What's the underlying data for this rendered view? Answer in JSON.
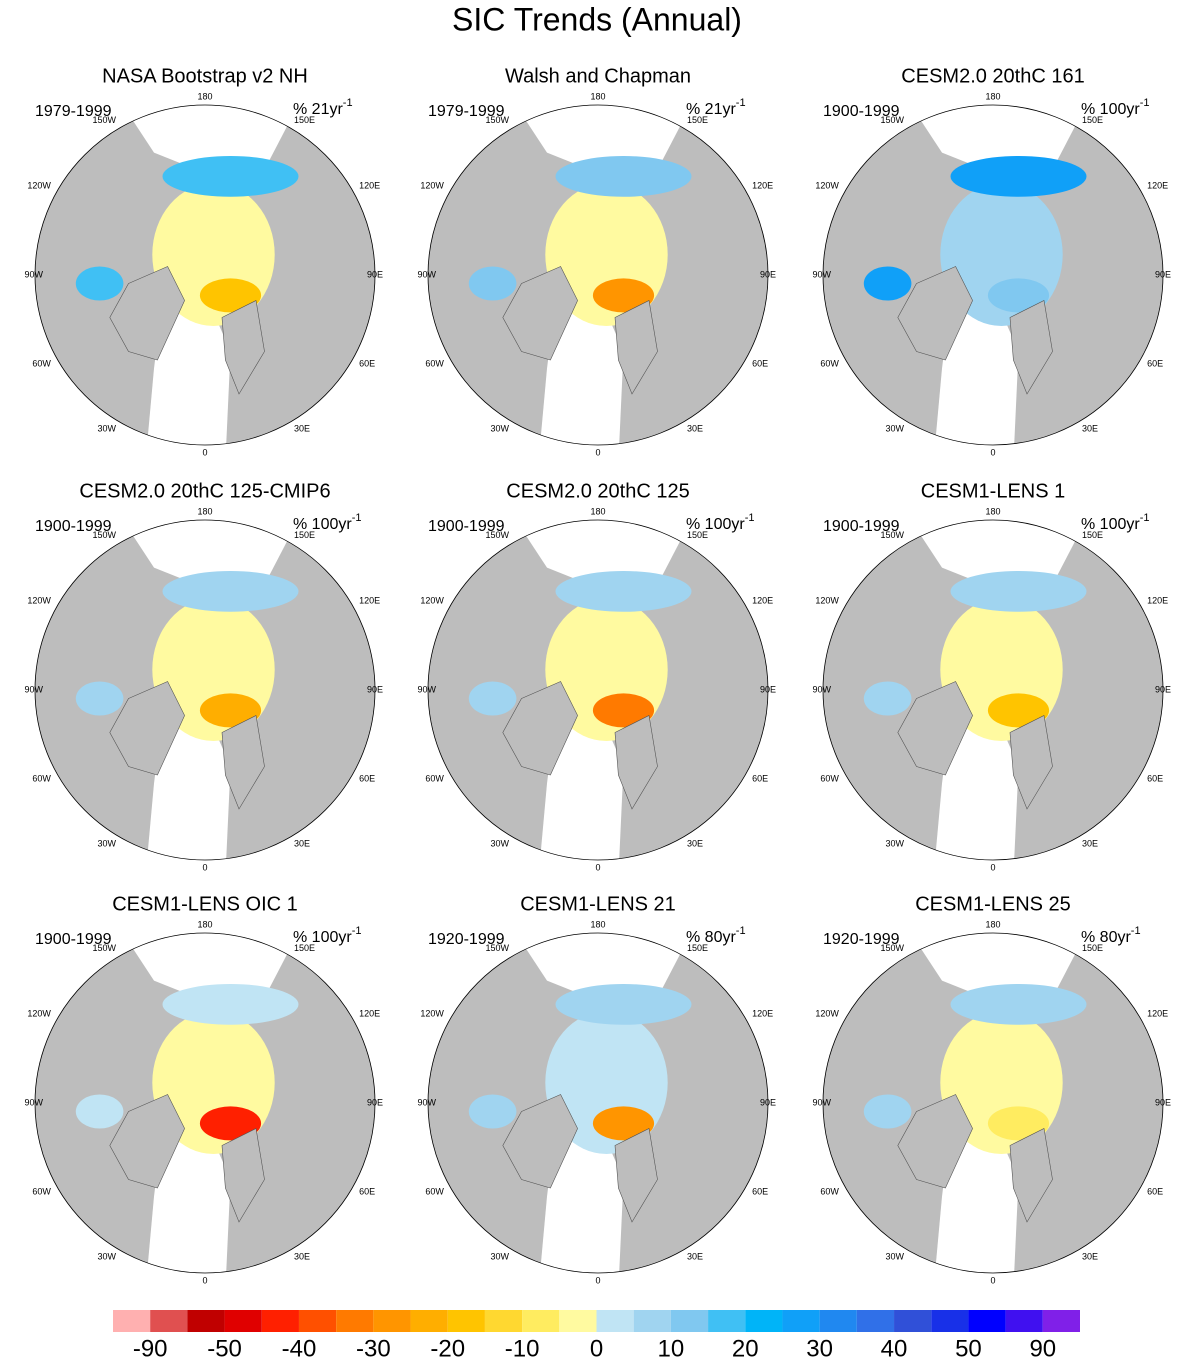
{
  "title": "SIC Trends (Annual)",
  "panels": [
    {
      "title": "NASA Bootstrap v2 NH",
      "period": "1979-1999",
      "unit": "% 21yr",
      "unit_exponent": "-1"
    },
    {
      "title": "Walsh and Chapman",
      "period": "1979-1999",
      "unit": "% 21yr",
      "unit_exponent": "-1"
    },
    {
      "title": "CESM2.0 20thC 161",
      "period": "1900-1999",
      "unit": "% 100yr",
      "unit_exponent": "-1"
    },
    {
      "title": "CESM2.0 20thC 125-CMIP6",
      "period": "1900-1999",
      "unit": "% 100yr",
      "unit_exponent": "-1"
    },
    {
      "title": "CESM2.0 20thC 125",
      "period": "1900-1999",
      "unit": "% 100yr",
      "unit_exponent": "-1"
    },
    {
      "title": "CESM1-LENS 1",
      "period": "1900-1999",
      "unit": "% 100yr",
      "unit_exponent": "-1"
    },
    {
      "title": "CESM1-LENS OIC 1",
      "period": "1900-1999",
      "unit": "% 100yr",
      "unit_exponent": "-1"
    },
    {
      "title": "CESM1-LENS 21",
      "period": "1920-1999",
      "unit": "% 80yr",
      "unit_exponent": "-1"
    },
    {
      "title": "CESM1-LENS 25",
      "period": "1920-1999",
      "unit": "% 80yr",
      "unit_exponent": "-1"
    }
  ],
  "lon_labels": [
    "0",
    "30E",
    "60E",
    "90E",
    "120E",
    "150E",
    "180",
    "150W",
    "120W",
    "90W",
    "60W",
    "30W"
  ],
  "colorbar": {
    "colors": [
      "#ffb0b0",
      "#e05050",
      "#c00000",
      "#e00000",
      "#ff2000",
      "#ff5000",
      "#ff7a00",
      "#ff9500",
      "#ffae00",
      "#ffc400",
      "#ffd830",
      "#ffec60",
      "#fffaa0",
      "#c0e4f4",
      "#a0d4f0",
      "#80c8f0",
      "#40c0f4",
      "#00b4f8",
      "#10a0f8",
      "#2088f0",
      "#3070e8",
      "#3050d8",
      "#1830e8",
      "#0000ff",
      "#4010f0",
      "#8020e8"
    ],
    "labels": [
      -90,
      -50,
      -40,
      -30,
      -20,
      -10,
      0,
      10,
      20,
      30,
      40,
      50,
      90
    ]
  }
}
